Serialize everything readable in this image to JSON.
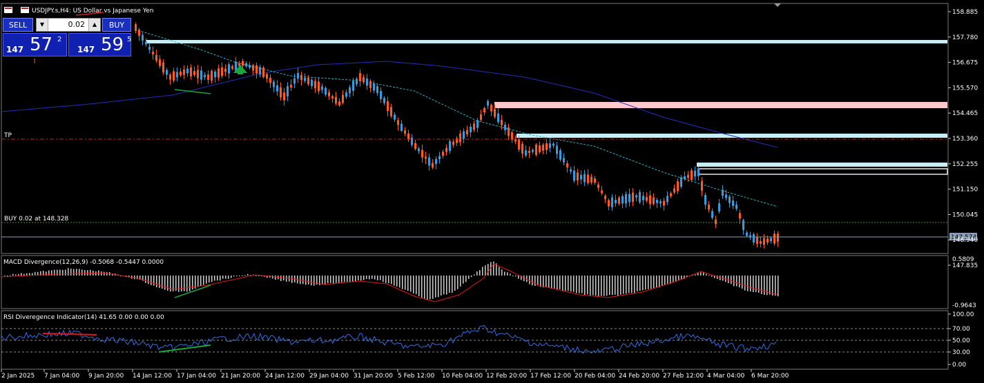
{
  "window": {
    "title": "USDJPY.s,H4:  US Dollar vs Japanese Yen",
    "icon": "chart-window-icon"
  },
  "trade_panel": {
    "sell_label": "SELL",
    "buy_label": "BUY",
    "lot": "0.02",
    "bid": {
      "small": "147",
      "big": "57",
      "pip": "2"
    },
    "ask": {
      "small": "147",
      "big": "59",
      "pip": "5"
    }
  },
  "price_axis": [
    "158.885",
    "157.780",
    "156.675",
    "155.570",
    "154.465",
    "153.360",
    "152.255",
    "151.150",
    "150.045",
    "148.940",
    "147.835"
  ],
  "current_price_tag": "147.574",
  "lines": {
    "tp_label": "TP",
    "buy_label": "BUY 0.02 at 148.328"
  },
  "macd": {
    "label": "MACD Divergence(12,26,9) -0.5068 -0.5447 0.0000",
    "axis": [
      "0.5809",
      "-0.9643"
    ]
  },
  "rsi": {
    "label": "RSI Diveregence Indicator(14) 41.65 0.00 0.00 0.00",
    "axis": [
      "100.00",
      "70.00",
      "50.00",
      "30.00",
      "0.00"
    ]
  },
  "time_axis": [
    "2 Jan 2025",
    "7 Jan 04:00",
    "9 Jan 20:00",
    "14 Jan 12:00",
    "17 Jan 04:00",
    "21 Jan 20:00",
    "24 Jan 12:00",
    "29 Jan 04:00",
    "31 Jan 20:00",
    "5 Feb 12:00",
    "10 Feb 04:00",
    "12 Feb 20:00",
    "17 Feb 12:00",
    "20 Feb 04:00",
    "24 Feb 20:00",
    "27 Feb 12:00",
    "4 Mar 04:00",
    "6 Mar 20:00"
  ],
  "colors": {
    "background": "#000000",
    "bull": "#3a9bdc",
    "bear": "#ff5a1f",
    "zone_cyan": "#c6eef4",
    "zone_pink": "#ffc8cc",
    "ma_slow": "#1f2fbf",
    "ma_fast": "#22b8c8",
    "tp_line": "#c8201e",
    "macd_signal": "#e01818",
    "rsi_line": "#2f6fe8",
    "divergence_bull": "#1aa83a",
    "divergence_bear": "#e01818"
  }
}
